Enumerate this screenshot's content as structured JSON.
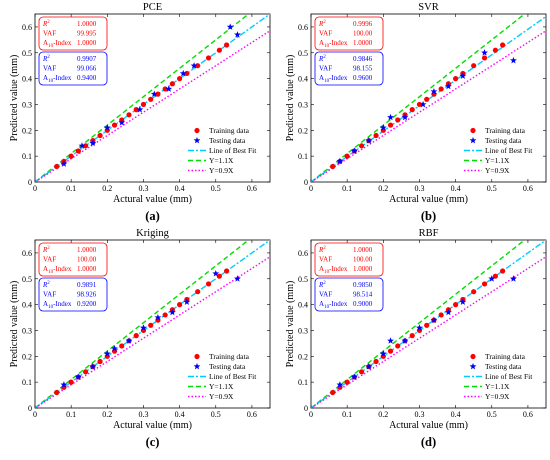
{
  "figure": {
    "panels": [
      {
        "title": "PCE",
        "label": "(a)",
        "stats_train": [
          [
            "R²",
            "1.0000"
          ],
          [
            "VAF",
            "99.995"
          ],
          [
            "A10-Index",
            "1.0000"
          ]
        ],
        "stats_test": [
          [
            "R²",
            "0.9907"
          ],
          [
            "VAF",
            "99.066"
          ],
          [
            "A10-Index",
            "0.9400"
          ]
        ]
      },
      {
        "title": "SVR",
        "label": "(b)",
        "stats_train": [
          [
            "R²",
            "0.9996"
          ],
          [
            "VAF",
            "100.00"
          ],
          [
            "A10-Index",
            "1.0000"
          ]
        ],
        "stats_test": [
          [
            "R²",
            "0.9846"
          ],
          [
            "VAF",
            "98.155"
          ],
          [
            "A10-Index",
            "0.9600"
          ]
        ]
      },
      {
        "title": "Kriging",
        "label": "(c)",
        "stats_train": [
          [
            "R²",
            "1.0000"
          ],
          [
            "VAF",
            "100.00"
          ],
          [
            "A10-Index",
            "1.0000"
          ]
        ],
        "stats_test": [
          [
            "R²",
            "0.9891"
          ],
          [
            "VAF",
            "98.926"
          ],
          [
            "A10-Index",
            "0.9200"
          ]
        ]
      },
      {
        "title": "RBF",
        "label": "(d)",
        "stats_train": [
          [
            "R²",
            "1.0000"
          ],
          [
            "VAF",
            "100.00"
          ],
          [
            "A10-Index",
            "1.0000"
          ]
        ],
        "stats_test": [
          [
            "R²",
            "0.9850"
          ],
          [
            "VAF",
            "98.514"
          ],
          [
            "A10-Index",
            "0.9000"
          ]
        ]
      }
    ]
  },
  "chart_data": [
    {
      "type": "scatter",
      "title": "PCE",
      "xlabel": "Actural value (mm)",
      "ylabel": "Predicted value (mm)",
      "xlim": [
        0,
        0.65
      ],
      "ylim": [
        0,
        0.65
      ],
      "xticks": [
        "0",
        "0.1",
        "0.2",
        "0.3",
        "0.4",
        "0.5",
        "0.6"
      ],
      "yticks": [
        "0",
        "0.1",
        "0.2",
        "0.3",
        "0.4",
        "0.5",
        "0.6"
      ],
      "legend": [
        "Training data",
        "Testing data",
        "Line of Best Fit",
        "Y=1.1X",
        "Y=0.9X"
      ],
      "legend_position": "bottom-right",
      "colors": {
        "training": "#ff0000",
        "testing": "#0000ff",
        "best_fit": "#00ccff",
        "upper": "#00dd00",
        "lower": "#ff00ff"
      },
      "best_fit_slope": 1.0,
      "training": {
        "x": [
          0.06,
          0.08,
          0.1,
          0.12,
          0.14,
          0.16,
          0.18,
          0.2,
          0.22,
          0.24,
          0.26,
          0.28,
          0.3,
          0.32,
          0.34,
          0.36,
          0.38,
          0.4,
          0.42,
          0.45,
          0.48,
          0.51,
          0.53
        ],
        "y": [
          0.06,
          0.08,
          0.1,
          0.12,
          0.14,
          0.16,
          0.18,
          0.2,
          0.22,
          0.24,
          0.26,
          0.28,
          0.3,
          0.32,
          0.34,
          0.36,
          0.38,
          0.4,
          0.42,
          0.45,
          0.48,
          0.51,
          0.53
        ]
      },
      "testing": {
        "x": [
          0.08,
          0.13,
          0.16,
          0.2,
          0.24,
          0.29,
          0.33,
          0.37,
          0.41,
          0.44,
          0.54,
          0.56
        ],
        "y": [
          0.07,
          0.14,
          0.15,
          0.21,
          0.23,
          0.28,
          0.34,
          0.36,
          0.42,
          0.45,
          0.6,
          0.57
        ]
      }
    },
    {
      "type": "scatter",
      "title": "SVR",
      "xlabel": "Actural value (mm)",
      "ylabel": "Predicted value (mm)",
      "xlim": [
        0,
        0.65
      ],
      "ylim": [
        0,
        0.65
      ],
      "xticks": [
        "0",
        "0.1",
        "0.2",
        "0.3",
        "0.4",
        "0.5",
        "0.6"
      ],
      "yticks": [
        "0",
        "0.1",
        "0.2",
        "0.3",
        "0.4",
        "0.5",
        "0.6"
      ],
      "legend": [
        "Training data",
        "Testing data",
        "Line of Best Fit",
        "Y=1.1X",
        "Y=0.9X"
      ],
      "legend_position": "bottom-right",
      "colors": {
        "training": "#ff0000",
        "testing": "#0000ff",
        "best_fit": "#00ccff",
        "upper": "#00dd00",
        "lower": "#ff00ff"
      },
      "best_fit_slope": 0.985,
      "training": {
        "x": [
          0.06,
          0.08,
          0.1,
          0.12,
          0.14,
          0.16,
          0.18,
          0.2,
          0.22,
          0.24,
          0.26,
          0.28,
          0.3,
          0.32,
          0.34,
          0.36,
          0.38,
          0.4,
          0.42,
          0.45,
          0.48,
          0.51,
          0.53
        ],
        "y": [
          0.06,
          0.08,
          0.1,
          0.12,
          0.14,
          0.16,
          0.18,
          0.2,
          0.22,
          0.24,
          0.26,
          0.28,
          0.3,
          0.32,
          0.34,
          0.36,
          0.38,
          0.4,
          0.42,
          0.45,
          0.48,
          0.51,
          0.53
        ]
      },
      "testing": {
        "x": [
          0.08,
          0.12,
          0.16,
          0.2,
          0.22,
          0.26,
          0.31,
          0.34,
          0.38,
          0.42,
          0.48,
          0.56
        ],
        "y": [
          0.08,
          0.12,
          0.16,
          0.21,
          0.25,
          0.25,
          0.3,
          0.35,
          0.37,
          0.41,
          0.5,
          0.47
        ]
      }
    },
    {
      "type": "scatter",
      "title": "Kriging",
      "xlabel": "Actural value (mm)",
      "ylabel": "Predicted value (mm)",
      "xlim": [
        0,
        0.65
      ],
      "ylim": [
        0,
        0.65
      ],
      "xticks": [
        "0",
        "0.1",
        "0.2",
        "0.3",
        "0.4",
        "0.5",
        "0.6"
      ],
      "yticks": [
        "0",
        "0.1",
        "0.2",
        "0.3",
        "0.4",
        "0.5",
        "0.6"
      ],
      "legend": [
        "Training data",
        "Testing data",
        "Line of Best Fit",
        "Y=1.1X",
        "Y=0.9X"
      ],
      "legend_position": "bottom-right",
      "colors": {
        "training": "#ff0000",
        "testing": "#0000ff",
        "best_fit": "#00ccff",
        "upper": "#00dd00",
        "lower": "#ff00ff"
      },
      "best_fit_slope": 1.0,
      "training": {
        "x": [
          0.06,
          0.08,
          0.1,
          0.12,
          0.14,
          0.16,
          0.18,
          0.2,
          0.22,
          0.24,
          0.26,
          0.28,
          0.3,
          0.32,
          0.34,
          0.36,
          0.38,
          0.4,
          0.42,
          0.45,
          0.48,
          0.51,
          0.53
        ],
        "y": [
          0.06,
          0.08,
          0.1,
          0.12,
          0.14,
          0.16,
          0.18,
          0.2,
          0.22,
          0.24,
          0.26,
          0.28,
          0.3,
          0.32,
          0.34,
          0.36,
          0.38,
          0.4,
          0.42,
          0.45,
          0.48,
          0.51,
          0.53
        ]
      },
      "testing": {
        "x": [
          0.08,
          0.12,
          0.16,
          0.2,
          0.22,
          0.26,
          0.3,
          0.34,
          0.38,
          0.42,
          0.5,
          0.56
        ],
        "y": [
          0.09,
          0.12,
          0.16,
          0.21,
          0.23,
          0.26,
          0.31,
          0.35,
          0.37,
          0.41,
          0.52,
          0.5
        ]
      }
    },
    {
      "type": "scatter",
      "title": "RBF",
      "xlabel": "Actural value (mm)",
      "ylabel": "Predicted value (mm)",
      "xlim": [
        0,
        0.65
      ],
      "ylim": [
        0,
        0.65
      ],
      "xticks": [
        "0",
        "0.1",
        "0.2",
        "0.3",
        "0.4",
        "0.5",
        "0.6"
      ],
      "yticks": [
        "0",
        "0.1",
        "0.2",
        "0.3",
        "0.4",
        "0.5",
        "0.6"
      ],
      "legend": [
        "Training data",
        "Testing data",
        "Line of Best Fit",
        "Y=1.1X",
        "Y=0.9X"
      ],
      "legend_position": "bottom-right",
      "colors": {
        "training": "#ff0000",
        "testing": "#0000ff",
        "best_fit": "#00ccff",
        "upper": "#00dd00",
        "lower": "#ff00ff"
      },
      "best_fit_slope": 1.0,
      "training": {
        "x": [
          0.06,
          0.08,
          0.1,
          0.12,
          0.14,
          0.16,
          0.18,
          0.2,
          0.22,
          0.24,
          0.26,
          0.28,
          0.3,
          0.32,
          0.34,
          0.36,
          0.38,
          0.4,
          0.42,
          0.45,
          0.48,
          0.51,
          0.53
        ],
        "y": [
          0.06,
          0.08,
          0.1,
          0.12,
          0.14,
          0.16,
          0.18,
          0.2,
          0.22,
          0.24,
          0.26,
          0.28,
          0.3,
          0.32,
          0.34,
          0.36,
          0.38,
          0.4,
          0.42,
          0.45,
          0.48,
          0.51,
          0.53
        ]
      },
      "testing": {
        "x": [
          0.08,
          0.12,
          0.16,
          0.2,
          0.22,
          0.26,
          0.3,
          0.34,
          0.38,
          0.42,
          0.5,
          0.56
        ],
        "y": [
          0.09,
          0.12,
          0.16,
          0.21,
          0.26,
          0.26,
          0.31,
          0.34,
          0.37,
          0.41,
          0.5,
          0.5
        ]
      }
    }
  ]
}
